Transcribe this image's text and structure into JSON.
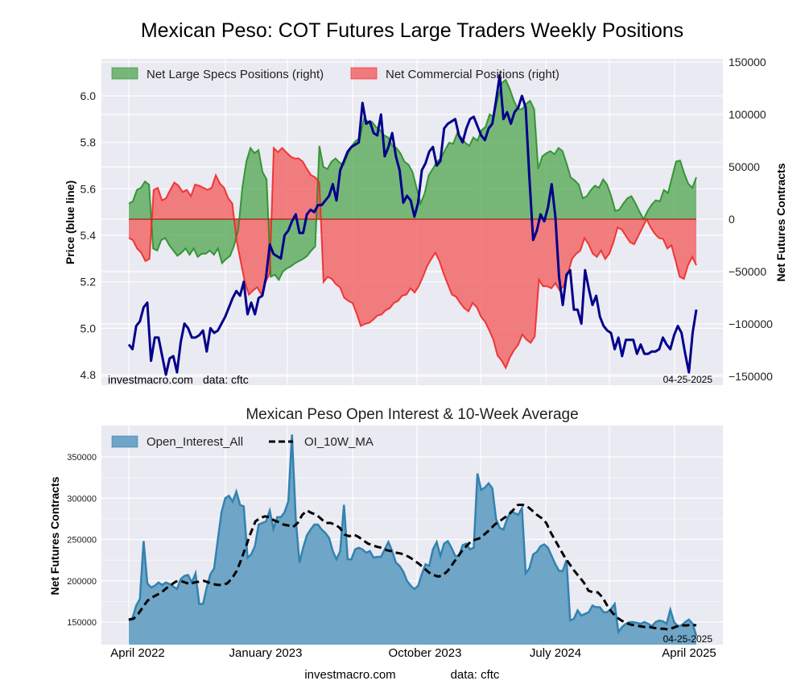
{
  "figure": {
    "title": "Mexican Peso: COT Futures Large Traders Weekly Positions",
    "footer_site": "investmacro.com",
    "footer_source": "data: cftc"
  },
  "colors": {
    "plot_bg": "#eaeaf2",
    "grid": "#ffffff",
    "price_line": "#00008b",
    "specs_fill": "#4fa64f",
    "specs_line": "#228b22",
    "comm_fill": "#f25c5c",
    "comm_line": "#ee2222",
    "oi_fill": "#6fa5c6",
    "oi_line": "#3282b0",
    "ma_line": "#000000"
  },
  "chart_data": [
    {
      "type": "area",
      "name": "positions-chart",
      "title": "",
      "ylabel_left": "Price (blue line)",
      "ylabel_right": "Net Futures Contracts",
      "watermark_site": "investmacro.com",
      "watermark_source": "data: cftc",
      "date_label": "04-25-2025",
      "ylim_left": [
        4.78,
        6.13
      ],
      "yticks_left": [
        "4.8",
        "5.0",
        "5.2",
        "5.4",
        "5.6",
        "5.8",
        "6.0"
      ],
      "ylim_right": [
        -150000,
        150000
      ],
      "yticks_right": [
        "−150000",
        "−100000",
        "−50000",
        "0",
        "50000",
        "100000",
        "150000"
      ],
      "legend": [
        {
          "label": "Net Large Specs Positions (right)",
          "kind": "specs"
        },
        {
          "label": "Net Commercial Positions (right)",
          "kind": "comm"
        }
      ],
      "legend_placement": "top",
      "grid": true,
      "x_start": "2022-04-05",
      "x_end": "2025-04-25",
      "series": [
        {
          "name": "Net Large Specs Positions",
          "values": [
            15000,
            17000,
            28000,
            30000,
            36000,
            33000,
            -28000,
            -30000,
            -20000,
            -18000,
            -25000,
            -30000,
            -35000,
            -32000,
            -28000,
            -34000,
            -28000,
            -36000,
            -33000,
            -33000,
            -30000,
            -34000,
            -28000,
            -42000,
            -38000,
            -35000,
            -25000,
            -10000,
            30000,
            55000,
            68000,
            63000,
            66000,
            45000,
            38000,
            -55000,
            -53000,
            -58000,
            -50000,
            -47000,
            -45000,
            -42000,
            -40000,
            -38000,
            -35000,
            -30000,
            -26000,
            70000,
            50000,
            48000,
            55000,
            58000,
            54000,
            52000,
            62000,
            70000,
            75000,
            77000,
            96000,
            93000,
            93000,
            88000,
            85000,
            80000,
            78000,
            70000,
            68000,
            63000,
            55000,
            52000,
            45000,
            30000,
            15000,
            25000,
            42000,
            48000,
            55000,
            58000,
            66000,
            73000,
            72000,
            82000,
            78000,
            73000,
            70000,
            78000,
            75000,
            85000,
            88000,
            100000,
            98000,
            115000,
            130000,
            133000,
            124000,
            113000,
            105000,
            105000,
            110000,
            113000,
            105000,
            48000,
            60000,
            63000,
            65000,
            62000,
            68000,
            65000,
            53000,
            40000,
            37000,
            33000,
            20000,
            22000,
            28000,
            32000,
            30000,
            38000,
            33000,
            22000,
            8000,
            9000,
            15000,
            20000,
            22000,
            15000,
            7000,
            0,
            8000,
            14000,
            18000,
            17000,
            28000,
            25000,
            40000,
            55000,
            56000,
            44000,
            34000,
            30000,
            40000
          ],
          "color_key": "specs"
        },
        {
          "name": "Net Commercial Positions",
          "values": [
            -18000,
            -20000,
            -28000,
            -32000,
            -40000,
            -38000,
            28000,
            30000,
            18000,
            20000,
            28000,
            35000,
            32000,
            26000,
            28000,
            22000,
            33000,
            32000,
            30000,
            28000,
            30000,
            42000,
            34000,
            30000,
            20000,
            15000,
            -20000,
            -40000,
            -60000,
            -72000,
            -68000,
            -65000,
            -72000,
            -60000,
            -52000,
            68000,
            64000,
            68000,
            64000,
            60000,
            58000,
            58000,
            55000,
            48000,
            42000,
            40000,
            35000,
            -60000,
            -55000,
            -57000,
            -62000,
            -65000,
            -75000,
            -78000,
            -80000,
            -90000,
            -102000,
            -100000,
            -99000,
            -96000,
            -92000,
            -91000,
            -87000,
            -85000,
            -80000,
            -78000,
            -73000,
            -72000,
            -66000,
            -70000,
            -64000,
            -55000,
            -45000,
            -38000,
            -32000,
            -40000,
            -52000,
            -62000,
            -72000,
            -74000,
            -80000,
            -85000,
            -88000,
            -80000,
            -84000,
            -93000,
            -98000,
            -106000,
            -115000,
            -130000,
            -135000,
            -142000,
            -132000,
            -125000,
            -120000,
            -110000,
            -115000,
            -118000,
            -112000,
            -58000,
            -64000,
            -64000,
            -66000,
            -61000,
            -68000,
            -64000,
            -52000,
            -38000,
            -33000,
            -30000,
            -18000,
            -24000,
            -33000,
            -36000,
            -30000,
            -38000,
            -33000,
            -22000,
            -8000,
            -10000,
            -16000,
            -22000,
            -24000,
            -16000,
            -8000,
            0,
            -8000,
            -14000,
            -18000,
            -19000,
            -28000,
            -25000,
            -40000,
            -55000,
            -57000,
            -44000,
            -36000,
            -44000
          ],
          "color_key": "comm"
        },
        {
          "name": "Price (blue line)",
          "axis": "left",
          "values": [
            4.93,
            4.91,
            5.01,
            5.03,
            5.09,
            5.11,
            4.86,
            4.96,
            4.96,
            4.88,
            4.8,
            4.87,
            4.88,
            4.81,
            4.94,
            5.02,
            5.0,
            4.96,
            4.96,
            4.97,
            4.99,
            4.9,
            5.0,
            4.98,
            4.99,
            5.02,
            5.05,
            5.09,
            5.13,
            5.16,
            5.14,
            5.2,
            5.06,
            5.11,
            5.06,
            5.13,
            5.14,
            5.22,
            5.36,
            5.32,
            5.31,
            5.3,
            5.4,
            5.42,
            5.46,
            5.49,
            5.41,
            5.41,
            5.49,
            5.51,
            5.5,
            5.53,
            5.53,
            5.55,
            5.57,
            5.62,
            5.55,
            5.68,
            5.72,
            5.76,
            5.78,
            5.79,
            5.8,
            5.97,
            5.88,
            5.89,
            5.84,
            5.83,
            5.92,
            5.74,
            5.78,
            5.84,
            5.74,
            5.68,
            5.54,
            5.57,
            5.55,
            5.48,
            5.54,
            5.68,
            5.71,
            5.76,
            5.78,
            5.7,
            5.72,
            5.86,
            5.88,
            5.89,
            5.9,
            5.83,
            5.8,
            5.86,
            5.9,
            5.91,
            5.87,
            5.83,
            5.81,
            5.86,
            5.88,
            5.98,
            6.09,
            5.9,
            5.93,
            5.88,
            5.93,
            5.95,
            6.0,
            5.95,
            5.65,
            5.38,
            5.42,
            5.49,
            5.46,
            5.52,
            5.62,
            5.48,
            5.22,
            5.1,
            5.23,
            5.25,
            5.08,
            5.08,
            5.02,
            5.25,
            5.17,
            5.1,
            5.14,
            5.05,
            5.01,
            4.99,
            4.98,
            4.91,
            4.96,
            4.88,
            4.95,
            4.95,
            4.95,
            4.89,
            4.93,
            4.89,
            4.89,
            4.9,
            4.9,
            4.91,
            4.96,
            4.93,
            4.91,
            4.97,
            5.01,
            4.98,
            4.89,
            4.81,
            4.98,
            5.08
          ],
          "color_key": "price_line"
        }
      ]
    },
    {
      "type": "area",
      "name": "open-interest-chart",
      "title": "Mexican Peso Open Interest & 10-Week Average",
      "ylabel": "Net Futures Contracts",
      "date_label": "04-25-2025",
      "ylim": [
        122000,
        385000
      ],
      "yticks": [
        "150000",
        "200000",
        "250000",
        "300000",
        "350000"
      ],
      "xticks": [
        "April 2022",
        "January 2023",
        "October 2023",
        "July 2024",
        "April 2025"
      ],
      "legend": [
        {
          "label": "Open_Interest_All",
          "kind": "oi"
        },
        {
          "label": "OI_10W_MA",
          "kind": "ma"
        }
      ],
      "legend_placement": "top-left",
      "grid": true,
      "series": [
        {
          "name": "Open_Interest_All",
          "values": [
            152000,
            155000,
            170000,
            178000,
            248000,
            197000,
            192000,
            194000,
            198000,
            195000,
            198000,
            196000,
            193000,
            190000,
            202000,
            206000,
            207000,
            198000,
            209000,
            172000,
            172000,
            192000,
            208000,
            215000,
            250000,
            283000,
            300000,
            303000,
            296000,
            308000,
            292000,
            290000,
            228000,
            232000,
            242000,
            268000,
            270000,
            272000,
            285000,
            263000,
            277000,
            277000,
            283000,
            296000,
            377000,
            275000,
            222000,
            240000,
            255000,
            262000,
            268000,
            268000,
            262000,
            258000,
            252000,
            236000,
            226000,
            236000,
            292000,
            226000,
            226000,
            238000,
            240000,
            238000,
            234000,
            236000,
            228000,
            229000,
            229000,
            238000,
            247000,
            236000,
            222000,
            218000,
            211000,
            200000,
            194000,
            190000,
            194000,
            208000,
            220000,
            218000,
            238000,
            247000,
            230000,
            245000,
            248000,
            240000,
            230000,
            230000,
            243000,
            245000,
            238000,
            240000,
            330000,
            310000,
            313000,
            318000,
            312000,
            275000,
            264000,
            262000,
            275000,
            284000,
            282000,
            280000,
            288000,
            209000,
            215000,
            232000,
            235000,
            242000,
            244000,
            240000,
            230000,
            220000,
            212000,
            212000,
            225000,
            152000,
            154000,
            164000,
            158000,
            160000,
            162000,
            170000,
            168000,
            168000,
            162000,
            162000,
            166000,
            172000,
            138000,
            144000,
            148000,
            150000,
            150000,
            149000,
            148000,
            150000,
            148000,
            145000,
            150000,
            152000,
            151000,
            148000,
            165000,
            150000,
            145000,
            146000,
            150000,
            153000,
            148000,
            133000
          ],
          "color_key": "oi"
        },
        {
          "name": "OI_10W_MA",
          "values": [
            153000,
            154000,
            160000,
            168000,
            176000,
            180000,
            183000,
            186000,
            191000,
            195000,
            199000,
            200000,
            198000,
            196000,
            198000,
            199000,
            200000,
            198000,
            196000,
            195000,
            195000,
            197000,
            203000,
            212000,
            226000,
            242000,
            258000,
            272000,
            276000,
            278000,
            277000,
            273000,
            271000,
            268000,
            267000,
            265000,
            270000,
            280000,
            285000,
            282000,
            280000,
            275000,
            270000,
            270000,
            268000,
            264000,
            256000,
            254000,
            256000,
            253000,
            249000,
            245000,
            243000,
            241000,
            240000,
            237000,
            236000,
            234000,
            233000,
            231000,
            228000,
            224000,
            220000,
            215000,
            210000,
            207000,
            205000,
            207000,
            212000,
            220000,
            228000,
            236000,
            242000,
            248000,
            250000,
            252000,
            257000,
            262000,
            268000,
            272000,
            276000,
            280000,
            286000,
            292000,
            292000,
            290000,
            285000,
            280000,
            276000,
            270000,
            258000,
            248000,
            238000,
            228000,
            220000,
            212000,
            205000,
            198000,
            188000,
            186000,
            186000,
            180000,
            170000,
            162000,
            156000,
            152000,
            149000,
            147000,
            146000,
            145000,
            144000,
            144000,
            143000,
            142000,
            142000,
            141000,
            143000,
            145000,
            146000,
            146000,
            147000,
            146000
          ],
          "color_key": "ma"
        }
      ]
    }
  ]
}
